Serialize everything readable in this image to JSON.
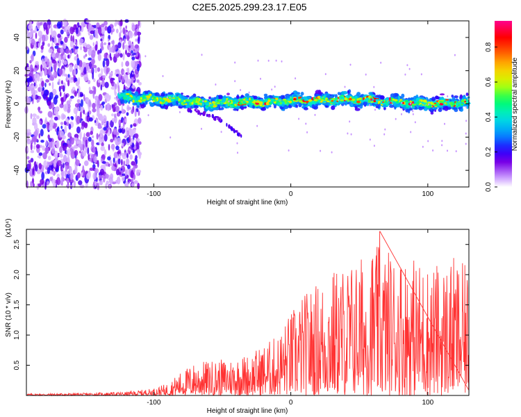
{
  "title": "C2E5.2025.299.23.17.E05",
  "chart_data": [
    {
      "type": "heatmap",
      "title": "C2E5.2025.299.23.17.E05",
      "xlabel": "Height of straight line (km)",
      "ylabel": "Frequency (Hz)",
      "xlim": [
        -193,
        130
      ],
      "ylim": [
        -50,
        50
      ],
      "xticks": [
        -100,
        0,
        100
      ],
      "xtick_labels": [
        "-100",
        "0",
        "100"
      ],
      "yticks": [
        -40,
        -20,
        0,
        20,
        40
      ],
      "ytick_labels": [
        "-40",
        "-20",
        "0",
        "20",
        "40"
      ],
      "colorbar": {
        "label": "Normalized spectral amplitude",
        "range": [
          0,
          0.95
        ],
        "ticks": [
          0.0,
          0.2,
          0.4,
          0.6,
          0.8
        ],
        "tick_labels": [
          "0.0",
          "0.2",
          "0.4",
          "0.6",
          "0.8"
        ],
        "colors": [
          "#ffffff",
          "#a040ff",
          "#0000ff",
          "#00bfff",
          "#00ff80",
          "#ffff00",
          "#ff8000",
          "#ff0000",
          "#ff0080"
        ]
      },
      "noise_region_x": [
        -193,
        -110
      ],
      "band": {
        "x_start": -125,
        "x_end": 130,
        "center_freq_hz": [
          [
            -125,
            4
          ],
          [
            -100,
            3
          ],
          [
            -80,
            2
          ],
          [
            -60,
            0
          ],
          [
            -40,
            1
          ],
          [
            -20,
            1
          ],
          [
            0,
            2
          ],
          [
            20,
            2
          ],
          [
            40,
            3
          ],
          [
            60,
            2
          ],
          [
            80,
            1
          ],
          [
            100,
            0
          ],
          [
            130,
            1
          ]
        ],
        "half_width_hz": 4
      },
      "branch": [
        [
          -75,
          -3
        ],
        [
          -55,
          -8
        ],
        [
          -35,
          -20
        ]
      ]
    },
    {
      "type": "line",
      "xlabel": "Height of straight line (km)",
      "ylabel": "SNR (10 * v/v)",
      "scale_label": "(x10⁴)",
      "xlim": [
        -193,
        130
      ],
      "ylim": [
        0,
        2.75
      ],
      "xticks": [
        -100,
        0,
        100
      ],
      "xtick_labels": [
        "-100",
        "0",
        "100"
      ],
      "yticks": [
        0.5,
        1.0,
        1.5,
        2.0,
        2.5
      ],
      "ytick_labels": [
        "0.5",
        "1.0",
        "1.5",
        "2.0",
        "2.5"
      ],
      "series": [
        {
          "name": "SNR",
          "color": "#ff3333",
          "envelope_x": [
            -193,
            -150,
            -120,
            -100,
            -90,
            -80,
            -70,
            -60,
            -50,
            -40,
            -30,
            -20,
            -10,
            0,
            10,
            20,
            30,
            40,
            50,
            60,
            70,
            80,
            90,
            100,
            110,
            120,
            130
          ],
          "envelope_y": [
            0.03,
            0.04,
            0.06,
            0.12,
            0.2,
            0.4,
            0.55,
            0.58,
            0.6,
            0.65,
            0.7,
            0.85,
            1.0,
            1.4,
            1.7,
            1.9,
            2.1,
            2.2,
            2.3,
            2.5,
            2.45,
            2.4,
            2.3,
            2.2,
            2.2,
            2.3,
            2.1
          ],
          "peak": [
            65,
            2.72
          ]
        }
      ]
    }
  ]
}
